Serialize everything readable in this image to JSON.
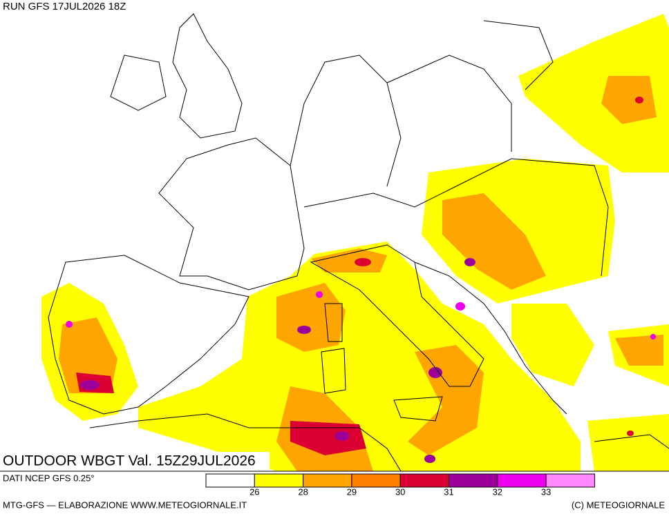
{
  "header": {
    "run": "RUN GFS 17JUL2026 18Z"
  },
  "map": {
    "title": "OUTDOOR WBGT Val. 15Z29JUL2026"
  },
  "legend": {
    "label": "DATI NCEP GFS 0.25°",
    "ticks": [
      26,
      28,
      29,
      30,
      31,
      32,
      33
    ],
    "colors": [
      "#ffffff",
      "#ffff00",
      "#ffa500",
      "#ff7f00",
      "#dc0032",
      "#9b009b",
      "#ee00ee",
      "#ff88ff"
    ]
  },
  "footer": {
    "left": "MTG-GFS — ELABORAZIONE WWW.METEOGIORNALE.IT",
    "right": "(C) METEOGIORNALE"
  }
}
